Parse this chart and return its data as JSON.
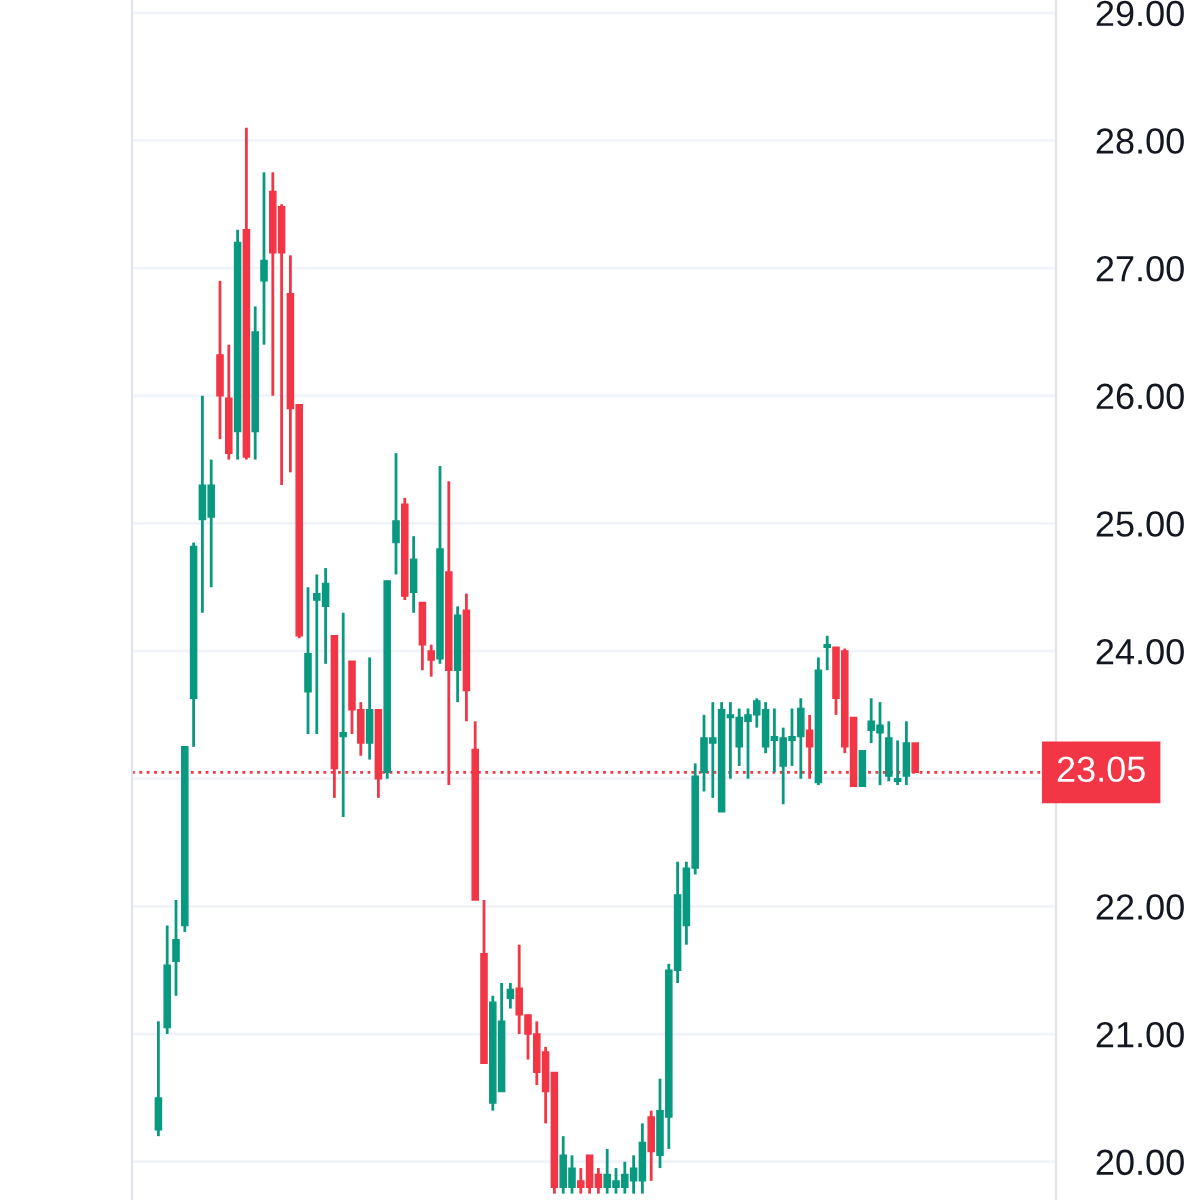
{
  "chart_data": {
    "type": "candlestick",
    "categories": [
      null,
      null,
      null,
      null,
      null,
      null,
      null,
      null,
      null,
      null,
      null,
      null,
      null,
      null,
      null,
      null,
      null,
      null,
      null,
      null,
      null,
      null,
      null,
      null,
      null,
      null,
      null,
      null,
      null,
      null,
      null,
      null,
      null,
      null,
      null,
      null,
      null,
      null,
      null,
      null,
      null,
      null,
      null,
      null,
      null,
      null,
      null,
      null,
      null,
      null,
      null,
      null,
      null,
      null,
      null,
      null,
      null,
      null,
      null,
      null,
      null,
      null,
      null,
      null,
      null,
      null,
      null,
      null,
      null,
      null,
      null,
      null,
      null,
      null,
      null,
      null,
      null,
      null,
      null,
      null,
      null,
      null,
      null,
      null,
      null,
      null,
      null
    ],
    "ohlc": [
      [
        20.25,
        21.1,
        20.2,
        20.5
      ],
      [
        21.05,
        21.85,
        21.0,
        21.54
      ],
      [
        21.57,
        22.05,
        21.3,
        21.74
      ],
      [
        21.85,
        23.25,
        21.8,
        23.25
      ],
      [
        23.63,
        24.85,
        23.25,
        24.82
      ],
      [
        25.03,
        26.0,
        24.3,
        25.3
      ],
      [
        25.05,
        25.5,
        24.5,
        25.3
      ],
      [
        26.32,
        26.9,
        25.66,
        26.0
      ],
      [
        25.98,
        26.4,
        25.5,
        25.55
      ],
      [
        25.72,
        27.3,
        25.5,
        27.2
      ],
      [
        27.3,
        28.1,
        25.5,
        25.52
      ],
      [
        25.72,
        26.7,
        25.5,
        26.5
      ],
      [
        26.9,
        27.75,
        26.4,
        27.06
      ],
      [
        27.6,
        27.75,
        26.0,
        27.12
      ],
      [
        27.48,
        27.5,
        25.3,
        27.12
      ],
      [
        26.8,
        27.1,
        25.4,
        25.9
      ],
      [
        25.93,
        25.93,
        24.1,
        24.12
      ],
      [
        23.68,
        24.5,
        23.35,
        23.98
      ],
      [
        24.4,
        24.6,
        23.35,
        24.45
      ],
      [
        24.35,
        24.65,
        23.9,
        24.53
      ],
      [
        24.12,
        24.12,
        22.85,
        23.08
      ],
      [
        23.33,
        24.3,
        22.7,
        23.36
      ],
      [
        23.92,
        23.92,
        23.35,
        23.54
      ],
      [
        23.54,
        23.6,
        23.18,
        23.28
      ],
      [
        23.28,
        23.95,
        23.15,
        23.54
      ],
      [
        23.54,
        23.54,
        22.85,
        23.0
      ],
      [
        23.05,
        24.55,
        23.0,
        24.55
      ],
      [
        24.85,
        25.55,
        24.6,
        25.02
      ],
      [
        25.15,
        25.2,
        24.4,
        24.43
      ],
      [
        24.46,
        24.9,
        24.3,
        24.72
      ],
      [
        24.38,
        24.38,
        23.85,
        24.05
      ],
      [
        24.0,
        24.05,
        23.8,
        23.93
      ],
      [
        23.94,
        25.45,
        23.9,
        24.8
      ],
      [
        24.62,
        25.33,
        22.95,
        23.85
      ],
      [
        23.85,
        24.35,
        23.6,
        24.28
      ],
      [
        24.32,
        24.45,
        23.45,
        23.69
      ],
      [
        23.23,
        23.45,
        22.05,
        22.05
      ],
      [
        21.63,
        22.05,
        20.77,
        20.77
      ],
      [
        20.46,
        21.3,
        20.4,
        21.25
      ],
      [
        20.55,
        21.4,
        20.55,
        21.1
      ],
      [
        21.28,
        21.4,
        21.2,
        21.35
      ],
      [
        21.36,
        21.7,
        21.0,
        21.15
      ],
      [
        21.15,
        21.15,
        20.8,
        21.0
      ],
      [
        21.0,
        21.1,
        20.6,
        20.7
      ],
      [
        20.86,
        20.9,
        20.3,
        20.55
      ],
      [
        20.7,
        20.7,
        19.75,
        19.8
      ],
      [
        19.8,
        20.2,
        19.75,
        20.05
      ],
      [
        19.8,
        20.05,
        19.75,
        19.95
      ],
      [
        19.85,
        19.95,
        19.75,
        19.8
      ],
      [
        20.05,
        20.05,
        19.75,
        19.8
      ],
      [
        19.9,
        19.95,
        19.75,
        19.8
      ],
      [
        19.8,
        20.1,
        19.75,
        19.9
      ],
      [
        19.8,
        19.95,
        19.75,
        19.85
      ],
      [
        19.8,
        20.0,
        19.75,
        19.9
      ],
      [
        19.85,
        20.05,
        19.75,
        19.95
      ],
      [
        19.85,
        20.3,
        19.75,
        20.15
      ],
      [
        20.35,
        20.4,
        19.85,
        20.08
      ],
      [
        20.05,
        20.65,
        19.95,
        20.4
      ],
      [
        20.35,
        21.55,
        20.1,
        21.5
      ],
      [
        21.5,
        22.35,
        21.4,
        22.09
      ],
      [
        21.85,
        22.35,
        21.7,
        22.3
      ],
      [
        22.3,
        23.12,
        22.25,
        23.02
      ],
      [
        23.05,
        23.5,
        22.9,
        23.32
      ],
      [
        23.28,
        23.6,
        22.85,
        23.32
      ],
      [
        22.74,
        23.6,
        22.74,
        23.54
      ],
      [
        23.48,
        23.6,
        23.0,
        23.5
      ],
      [
        23.25,
        23.55,
        23.1,
        23.48
      ],
      [
        23.45,
        23.55,
        23.0,
        23.5
      ],
      [
        23.5,
        23.63,
        23.4,
        23.61
      ],
      [
        23.25,
        23.6,
        23.2,
        23.54
      ],
      [
        23.3,
        23.55,
        23.05,
        23.33
      ],
      [
        23.1,
        23.4,
        22.8,
        23.32
      ],
      [
        23.3,
        23.55,
        23.1,
        23.33
      ],
      [
        23.33,
        23.63,
        23.0,
        23.55
      ],
      [
        23.38,
        23.5,
        23.0,
        23.25
      ],
      [
        22.97,
        23.95,
        22.95,
        23.85
      ],
      [
        24.03,
        24.12,
        23.85,
        24.05
      ],
      [
        24.03,
        24.03,
        23.5,
        23.63
      ],
      [
        24.0,
        24.02,
        23.2,
        23.25
      ],
      [
        23.48,
        23.48,
        22.94,
        22.94
      ],
      [
        22.94,
        23.22,
        22.94,
        23.22
      ],
      [
        23.38,
        23.63,
        23.28,
        23.45
      ],
      [
        23.36,
        23.6,
        22.95,
        23.42
      ],
      [
        23.02,
        23.45,
        22.98,
        23.32
      ],
      [
        22.98,
        23.3,
        22.95,
        23.0
      ],
      [
        23.02,
        23.45,
        22.95,
        23.28
      ],
      [
        23.28,
        23.28,
        23.05,
        23.05
      ]
    ],
    "colors": [
      "#089981",
      "#089981",
      "#089981",
      "#089981",
      "#089981",
      "#089981",
      "#089981",
      "#f23645",
      "#f23645",
      "#089981",
      "#f23645",
      "#089981",
      "#089981",
      "#f23645",
      "#f23645",
      "#f23645",
      "#f23645",
      "#089981",
      "#089981",
      "#089981",
      "#f23645",
      "#089981",
      "#f23645",
      "#f23645",
      "#089981",
      "#f23645",
      "#089981",
      "#089981",
      "#f23645",
      "#089981",
      "#f23645",
      "#f23645",
      "#089981",
      "#f23645",
      "#089981",
      "#f23645",
      "#f23645",
      "#f23645",
      "#089981",
      "#089981",
      "#089981",
      "#f23645",
      "#f23645",
      "#f23645",
      "#f23645",
      "#f23645",
      "#089981",
      "#089981",
      "#f23645",
      "#f23645",
      "#f23645",
      "#089981",
      "#089981",
      "#089981",
      "#089981",
      "#089981",
      "#f23645",
      "#089981",
      "#089981",
      "#089981",
      "#089981",
      "#089981",
      "#089981",
      "#089981",
      "#089981",
      "#089981",
      "#089981",
      "#089981",
      "#089981",
      "#089981",
      "#089981",
      "#089981",
      "#089981",
      "#089981",
      "#f23645",
      "#089981",
      "#089981",
      "#f23645",
      "#f23645",
      "#f23645",
      "#089981",
      "#089981",
      "#089981",
      "#089981",
      "#089981",
      "#089981",
      "#f23645"
    ],
    "ylim": [
      19.7,
      29.1
    ],
    "yticks": [
      {
        "value": 20,
        "label": "20.00"
      },
      {
        "value": 21,
        "label": "21.00"
      },
      {
        "value": 22,
        "label": "22.00"
      },
      {
        "value": 23,
        "label": null
      },
      {
        "value": 24,
        "label": "24.00"
      },
      {
        "value": 25,
        "label": "25.00"
      },
      {
        "value": 26,
        "label": "26.00"
      },
      {
        "value": 27,
        "label": "27.00"
      },
      {
        "value": 28,
        "label": "28.00"
      },
      {
        "value": 29,
        "label": "29.00"
      }
    ],
    "ref_lines": [
      {
        "axis": "y",
        "value": 23.05,
        "label": "23.05",
        "color": "#f23645",
        "line_style": "dotted"
      }
    ],
    "grid": "y"
  }
}
